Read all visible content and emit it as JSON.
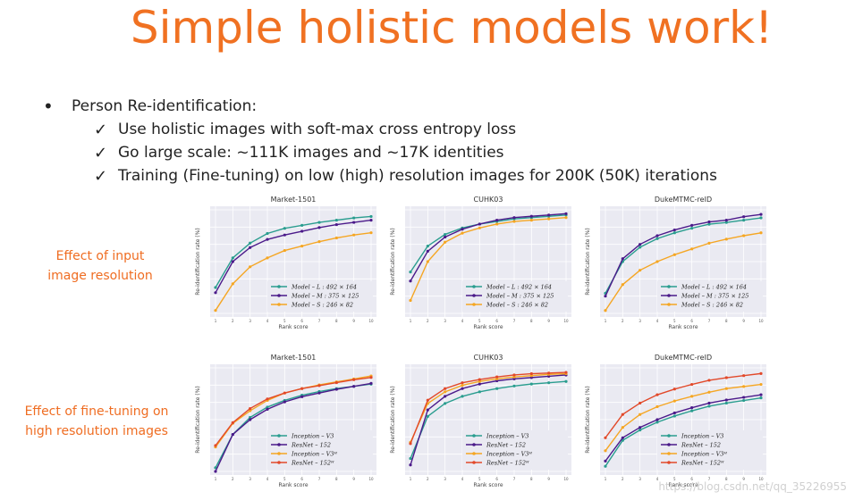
{
  "slide": {
    "title": "Simple holistic models work!",
    "bullets": [
      {
        "level": 1,
        "marker": "•",
        "text": "Person Re-identification:"
      },
      {
        "level": 2,
        "marker": "✓",
        "text": "Use holistic images with soft-max cross entropy loss"
      },
      {
        "level": 2,
        "marker": "✓",
        "text": "Go large scale: ~111K images and  ~17K identities"
      },
      {
        "level": 2,
        "marker": "✓",
        "text": "Training (Fine-tuning) on low (high) resolution images for 200K (50K) iterations"
      }
    ],
    "side_labels": {
      "resolution": [
        "Effect of input",
        "image resolution"
      ],
      "finetune": [
        "Effect of fine-tuning on",
        "high resolution images"
      ]
    },
    "watermark": "https://blog.csdn.net/qq_35226955",
    "colors": {
      "title": "#f07122",
      "accent_label": "#ef6d22"
    }
  },
  "chart_data": [
    {
      "type": "line",
      "title": "Market-1501",
      "xlabel": "Rank score",
      "ylabel": "Re-identification rate (%)",
      "x": [
        1,
        2,
        3,
        4,
        5,
        6,
        7,
        8,
        9,
        10
      ],
      "ylim": [
        82,
        96
      ],
      "legend": "bottom-right",
      "series": [
        {
          "name": "Model – L : 492 × 164",
          "color": "#2a9d8f",
          "values": [
            85.5,
            89.5,
            91.5,
            92.8,
            93.5,
            93.9,
            94.3,
            94.6,
            94.9,
            95.1
          ]
        },
        {
          "name": "Model – M : 375 × 125",
          "color": "#4b1a8a",
          "values": [
            84.8,
            89.0,
            90.9,
            92.0,
            92.6,
            93.1,
            93.6,
            94.0,
            94.3,
            94.6
          ]
        },
        {
          "name": "Model – S : 246 × 82",
          "color": "#f5a623",
          "values": [
            82.4,
            86.0,
            88.3,
            89.5,
            90.5,
            91.1,
            91.7,
            92.2,
            92.6,
            92.9
          ]
        }
      ]
    },
    {
      "type": "line",
      "title": "CUHK03",
      "xlabel": "Rank score",
      "ylabel": "Re-identification rate (%)",
      "x": [
        1,
        2,
        3,
        4,
        5,
        6,
        7,
        8,
        9,
        10
      ],
      "ylim": [
        92,
        100
      ],
      "legend": "bottom-right",
      "series": [
        {
          "name": "Model – L : 492 × 164",
          "color": "#2a9d8f",
          "values": [
            95.2,
            97.2,
            98.1,
            98.6,
            98.9,
            99.1,
            99.3,
            99.4,
            99.5,
            99.6
          ]
        },
        {
          "name": "Model – M : 375 × 125",
          "color": "#4b1a8a",
          "values": [
            94.5,
            96.8,
            97.9,
            98.5,
            98.9,
            99.2,
            99.4,
            99.5,
            99.6,
            99.7
          ]
        },
        {
          "name": "Model – S : 246 × 82",
          "color": "#f5a623",
          "values": [
            93.0,
            96.0,
            97.5,
            98.2,
            98.6,
            98.9,
            99.1,
            99.2,
            99.3,
            99.4
          ]
        }
      ]
    },
    {
      "type": "line",
      "title": "DukeMTMC-reID",
      "xlabel": "Rank score",
      "ylabel": "Re-identification rate (%)",
      "x": [
        1,
        2,
        3,
        4,
        5,
        6,
        7,
        8,
        9,
        10
      ],
      "ylim": [
        74,
        92
      ],
      "legend": "bottom-right",
      "series": [
        {
          "name": "Model – L : 492 × 164",
          "color": "#2a9d8f",
          "values": [
            77.5,
            83.0,
            85.5,
            87.0,
            88.0,
            88.8,
            89.5,
            89.8,
            90.2,
            90.6
          ]
        },
        {
          "name": "Model – M : 375 × 125",
          "color": "#4b1a8a",
          "values": [
            77.0,
            83.5,
            86.0,
            87.5,
            88.5,
            89.3,
            89.9,
            90.2,
            90.8,
            91.2
          ]
        },
        {
          "name": "Model – S : 246 × 82",
          "color": "#f5a623",
          "values": [
            74.5,
            79.0,
            81.5,
            83.0,
            84.2,
            85.2,
            86.2,
            86.9,
            87.5,
            88.0
          ]
        }
      ]
    },
    {
      "type": "line",
      "title": "Market-1501",
      "xlabel": "Rank score",
      "ylabel": "Re-identification rate (%)",
      "x": [
        1,
        2,
        3,
        4,
        5,
        6,
        7,
        8,
        9,
        10
      ],
      "ylim": [
        82,
        96
      ],
      "legend": "bottom-right",
      "series": [
        {
          "name": "Inception – V3",
          "color": "#2a9d8f",
          "values": [
            82.5,
            87.0,
            89.3,
            90.7,
            91.6,
            92.3,
            92.8,
            93.2,
            93.5,
            93.8
          ]
        },
        {
          "name": "ResNet – 152",
          "color": "#4b1a8a",
          "values": [
            82.0,
            87.0,
            89.0,
            90.4,
            91.4,
            92.1,
            92.6,
            93.1,
            93.5,
            93.9
          ]
        },
        {
          "name": "Inception – V3ᴴ",
          "color": "#f5a623",
          "values": [
            85.3,
            88.5,
            90.2,
            91.6,
            92.6,
            93.2,
            93.7,
            94.1,
            94.5,
            94.9
          ]
        },
        {
          "name": "ResNet – 152ᴴ",
          "color": "#e2492a",
          "values": [
            85.5,
            88.6,
            90.5,
            91.8,
            92.6,
            93.2,
            93.6,
            94.0,
            94.4,
            94.7
          ]
        }
      ]
    },
    {
      "type": "line",
      "title": "CUHK03",
      "xlabel": "Rank score",
      "ylabel": "Re-identification rate (%)",
      "x": [
        1,
        2,
        3,
        4,
        5,
        6,
        7,
        8,
        9,
        10
      ],
      "ylim": [
        84,
        100
      ],
      "legend": "bottom-right",
      "series": [
        {
          "name": "Inception – V3",
          "color": "#2a9d8f",
          "values": [
            86.0,
            92.5,
            94.5,
            95.6,
            96.3,
            96.8,
            97.2,
            97.5,
            97.7,
            97.9
          ]
        },
        {
          "name": "ResNet – 152",
          "color": "#4b1a8a",
          "values": [
            85.0,
            93.5,
            95.6,
            96.8,
            97.5,
            98.0,
            98.3,
            98.5,
            98.7,
            98.9
          ]
        },
        {
          "name": "Inception – V3ᴴ",
          "color": "#f5a623",
          "values": [
            88.5,
            94.5,
            96.3,
            97.3,
            97.9,
            98.3,
            98.6,
            98.8,
            99.0,
            99.1
          ]
        },
        {
          "name": "ResNet – 152ᴴ",
          "color": "#e2492a",
          "values": [
            88.3,
            95.0,
            96.8,
            97.7,
            98.2,
            98.6,
            98.9,
            99.1,
            99.2,
            99.3
          ]
        }
      ]
    },
    {
      "type": "line",
      "title": "DukeMTMC-reID",
      "xlabel": "Rank score",
      "ylabel": "Re-identification rate (%)",
      "x": [
        1,
        2,
        3,
        4,
        5,
        6,
        7,
        8,
        9,
        10
      ],
      "ylim": [
        72,
        92
      ],
      "legend": "bottom-right",
      "series": [
        {
          "name": "Inception – V3",
          "color": "#2a9d8f",
          "values": [
            73.0,
            78.0,
            80.0,
            81.5,
            82.7,
            83.7,
            84.6,
            85.2,
            85.7,
            86.2
          ]
        },
        {
          "name": "ResNet – 152",
          "color": "#4b1a8a",
          "values": [
            74.0,
            78.5,
            80.5,
            82.0,
            83.3,
            84.3,
            85.2,
            85.8,
            86.3,
            86.8
          ]
        },
        {
          "name": "Inception – V3ᴴ",
          "color": "#f5a623",
          "values": [
            76.0,
            80.5,
            83.0,
            84.5,
            85.6,
            86.5,
            87.3,
            88.0,
            88.4,
            88.8
          ]
        },
        {
          "name": "ResNet – 152ᴴ",
          "color": "#e2492a",
          "values": [
            78.5,
            83.0,
            85.2,
            86.8,
            87.9,
            88.8,
            89.6,
            90.1,
            90.5,
            90.9
          ]
        }
      ]
    }
  ]
}
